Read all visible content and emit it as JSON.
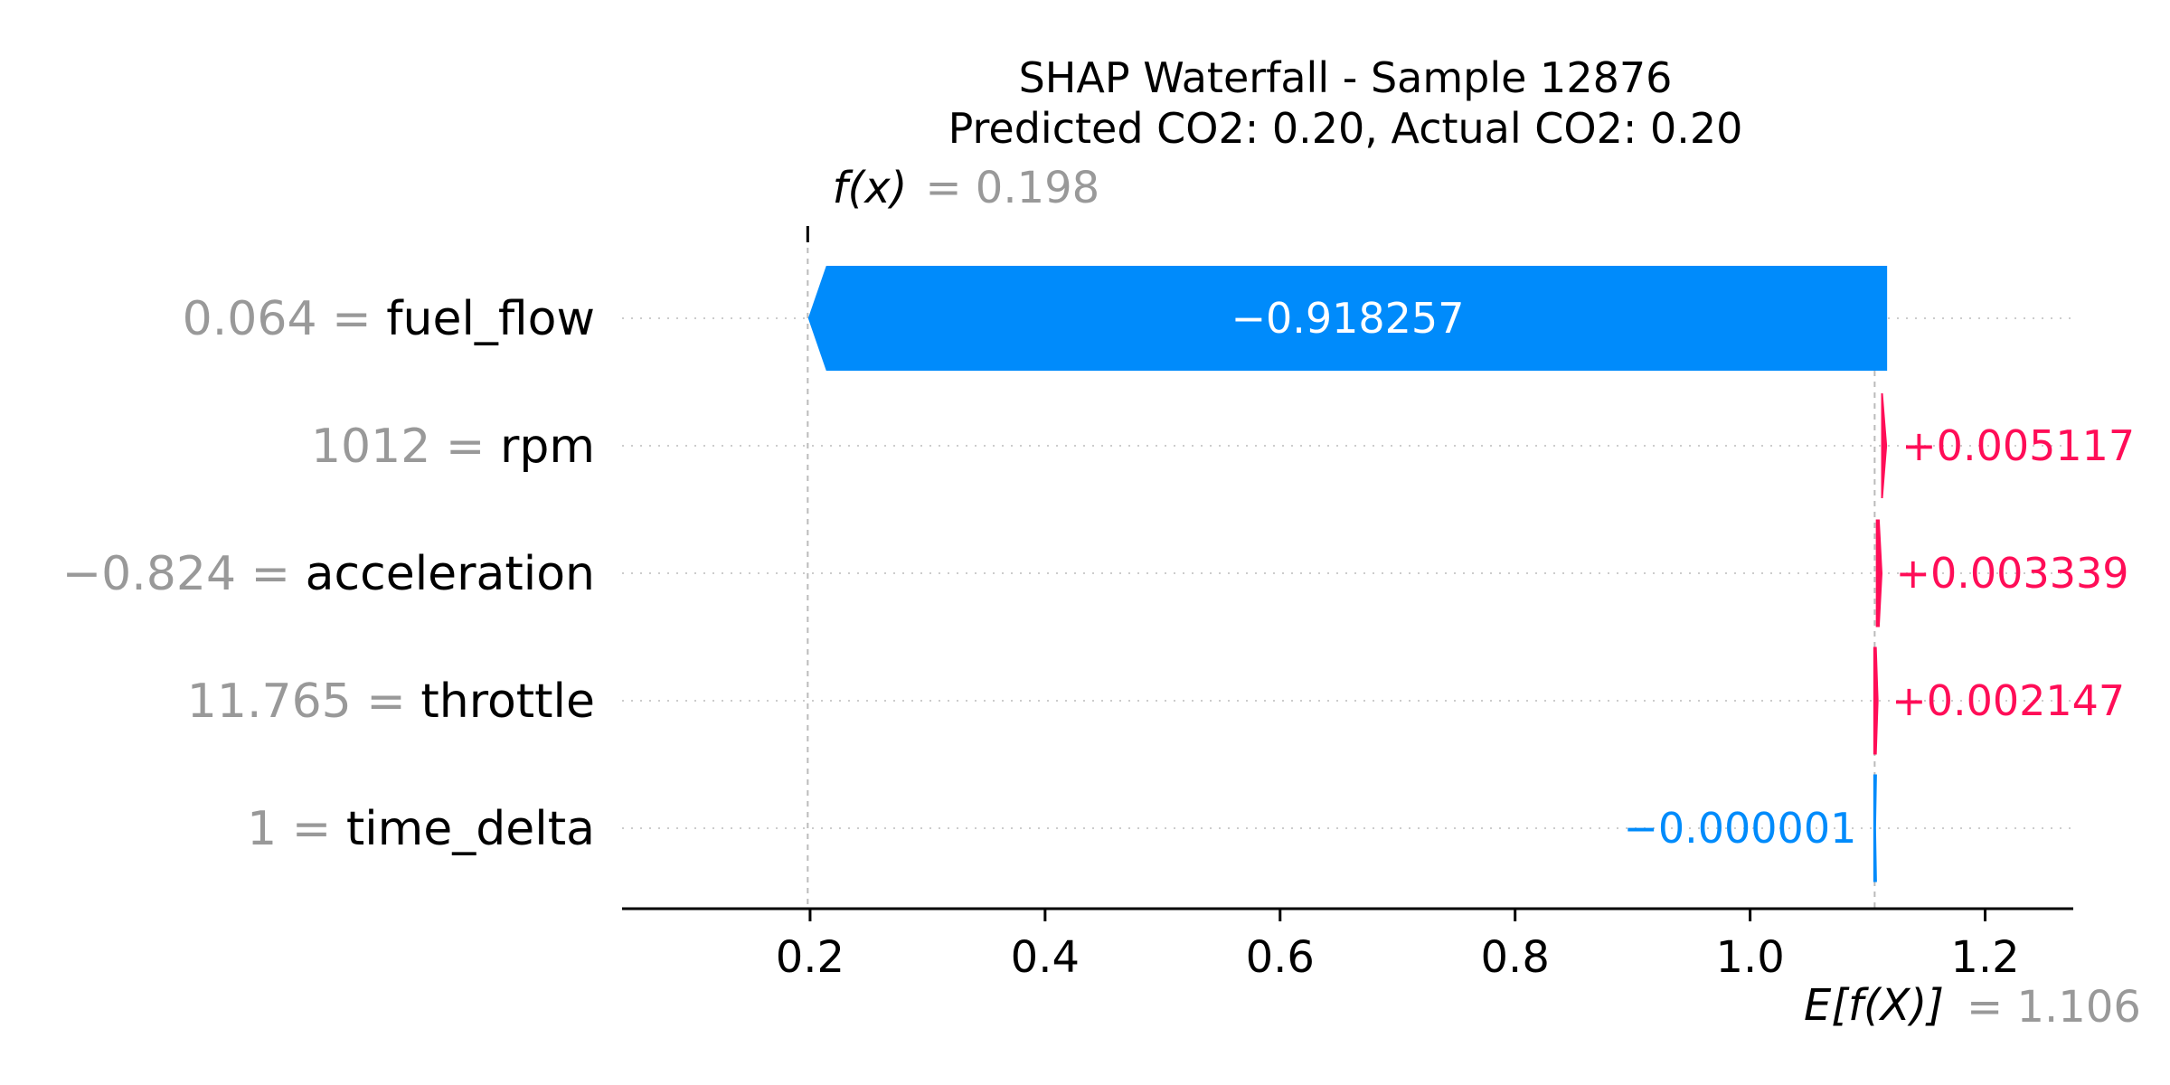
{
  "chart_data": {
    "type": "bar",
    "title_lines": [
      "SHAP Waterfall - Sample 12876",
      "Predicted CO2: 0.20, Actual CO2: 0.20"
    ],
    "features": [
      {
        "value": "0.064",
        "name": "fuel_flow",
        "shap": -0.918257,
        "label": "−0.918257"
      },
      {
        "value": "1012",
        "name": "rpm",
        "shap": 0.005117,
        "label": "+0.005117"
      },
      {
        "value": "−0.824",
        "name": "acceleration",
        "shap": 0.003339,
        "label": "+0.003339"
      },
      {
        "value": "11.765",
        "name": "throttle",
        "shap": 0.002147,
        "label": "+0.002147"
      },
      {
        "value": "1",
        "name": "time_delta",
        "shap": -1e-06,
        "label": "−0.000001"
      }
    ],
    "base_value": 1.106,
    "base_label": "E[f(X)]",
    "base_value_text": "= 1.106",
    "output_value": 0.198,
    "output_label": "f(x)",
    "output_value_text": "= 0.198",
    "xticks": [
      "0.2",
      "0.4",
      "0.6",
      "0.8",
      "1.0",
      "1.2"
    ],
    "xtick_values": [
      0.2,
      0.4,
      0.6,
      0.8,
      1.0,
      1.2
    ],
    "xlim": [
      0.04,
      1.275
    ],
    "colors": {
      "positive": "#ff0d57",
      "negative": "#008bfb",
      "neutral_text": "#999999"
    }
  }
}
